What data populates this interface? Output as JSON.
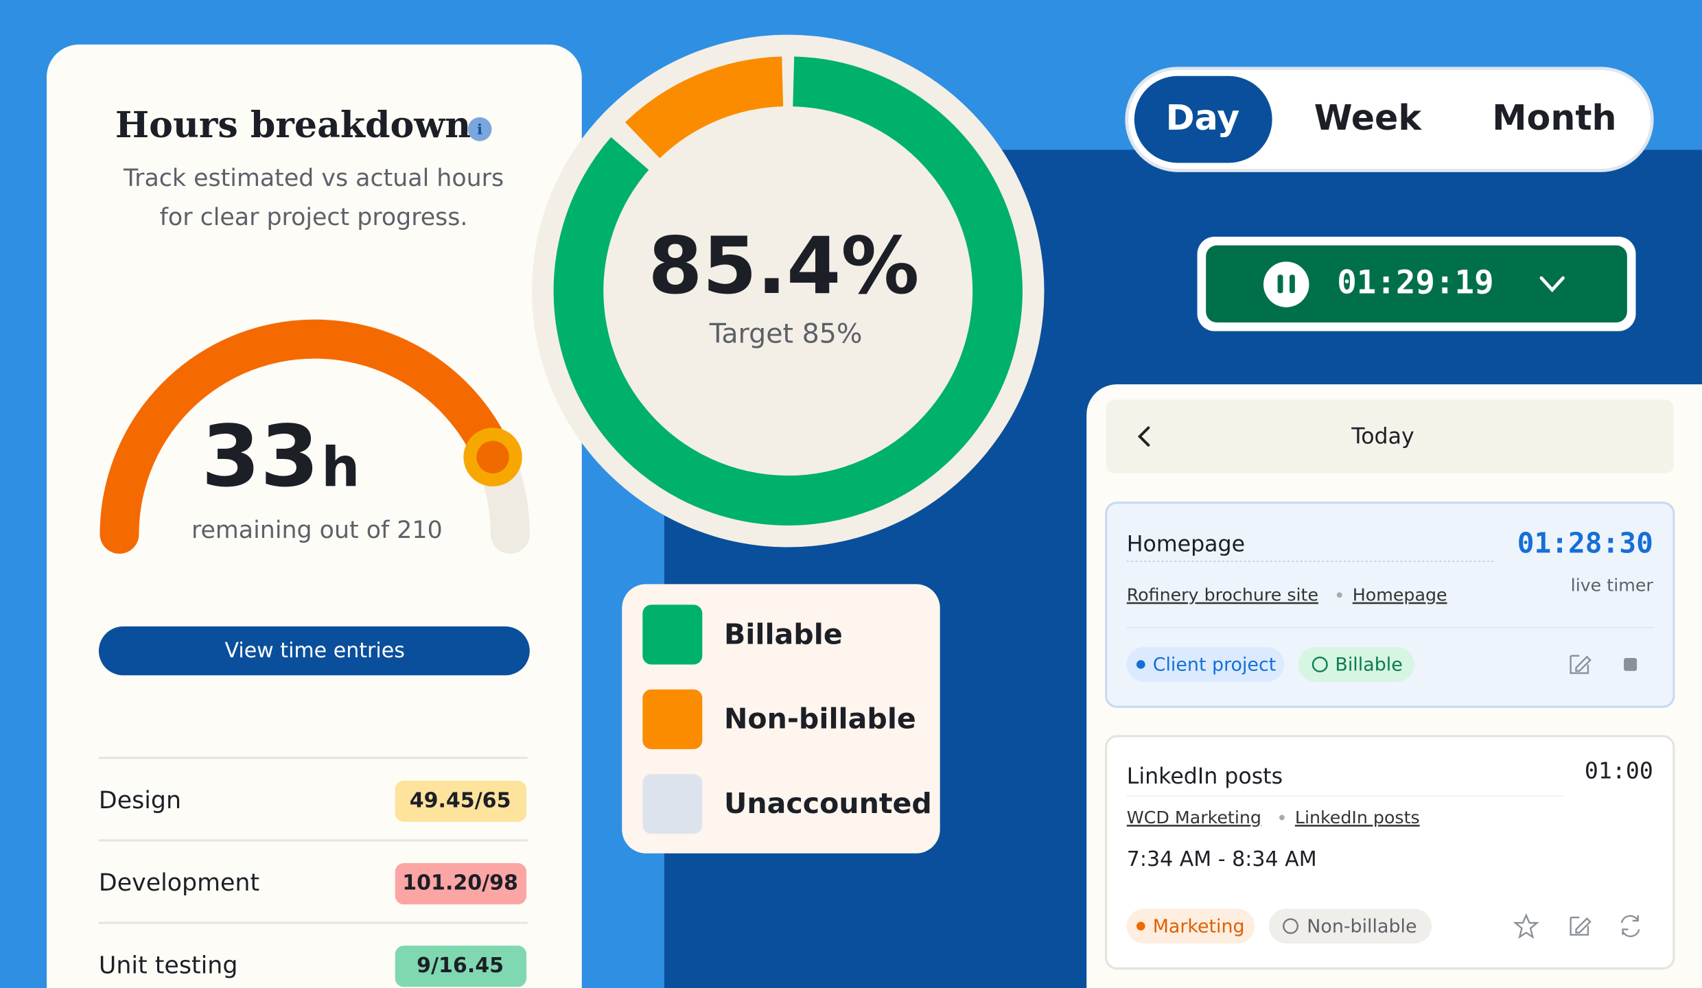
{
  "hours_card": {
    "title": "Hours breakdown",
    "subtitle_lines": [
      "Track estimated vs actual hours",
      "for clear project progress."
    ],
    "remaining_value": "33",
    "remaining_unit": "h",
    "remaining_text": "remaining out of 210",
    "button": "View time entries",
    "rows": [
      {
        "label": "Design",
        "value": "49.45/65"
      },
      {
        "label": "Development",
        "value": "101.20/98"
      },
      {
        "label": "Unit testing",
        "value": "9/16.45"
      }
    ]
  },
  "donut": {
    "value": "85.4%",
    "caption": "Target 85%"
  },
  "legend": [
    "Billable",
    "Non-billable",
    "Unaccounted"
  ],
  "period_tabs": [
    "Day",
    "Week",
    "Month"
  ],
  "timer": "01:29:19",
  "today_panel": {
    "title": "Today",
    "entries": [
      {
        "name": "Homepage",
        "time": "01:28:30",
        "time_note": "live timer",
        "links": [
          "Rofinery brochure site",
          "Homepage"
        ],
        "tags": [
          "Client project",
          "Billable"
        ]
      },
      {
        "name": "LinkedIn posts",
        "time": "01:00",
        "links": [
          "WCD Marketing",
          "LinkedIn posts"
        ],
        "range": "7:34 AM - 8:34 AM",
        "tags": [
          "Marketing",
          "Non-billable"
        ]
      }
    ]
  }
}
